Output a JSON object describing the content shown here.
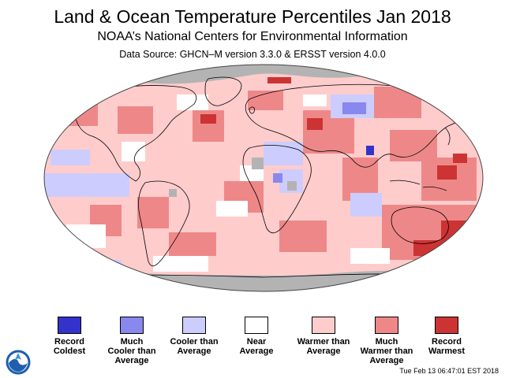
{
  "header": {
    "title": "Land & Ocean Temperature Percentiles Jan 2018",
    "subtitle": "NOAA’s National Centers for Environmental Information",
    "source": "Data Source: GHCN–M version 3.3.0 & ERSST version 4.0.0"
  },
  "legend": [
    {
      "label": "Record\nColdest",
      "color": "#3333cc"
    },
    {
      "label": "Much\nCooler than\nAverage",
      "color": "#8888ee"
    },
    {
      "label": "Cooler than\nAverage",
      "color": "#ccccff"
    },
    {
      "label": "Near\nAverage",
      "color": "#ffffff"
    },
    {
      "label": "Warmer than\nAverage",
      "color": "#ffcccc"
    },
    {
      "label": "Much\nWarmer than\nAverage",
      "color": "#ee8888"
    },
    {
      "label": "Record\nWarmest",
      "color": "#cc3333"
    }
  ],
  "map_colors": {
    "ocean_base": "#ffcccc",
    "no_data": "#b3b3b3",
    "outline": "#000000"
  },
  "footer": {
    "timestamp": "Tue Feb 13 06:47:01 EST 2018"
  }
}
